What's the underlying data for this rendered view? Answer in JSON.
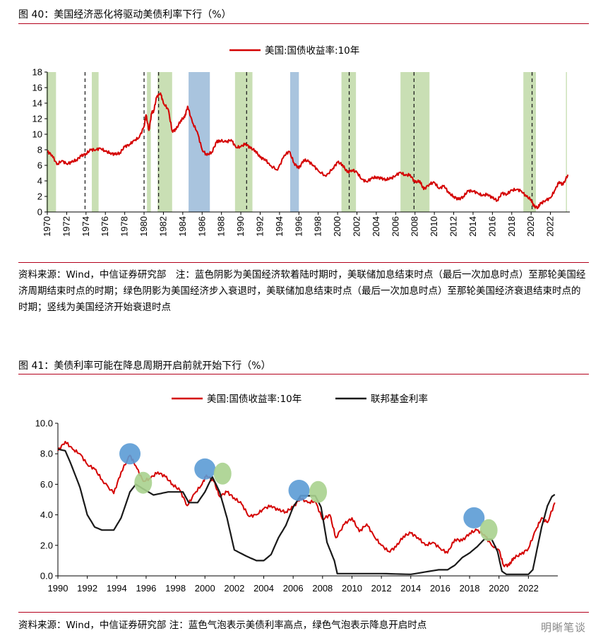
{
  "fig40": {
    "title": "图 40：美国经济恶化将驱动美债利率下行（%）",
    "note": "资料来源：Wind，中信证券研究部　注：蓝色阴影为美国经济软着陆时期时，美联储加息结束时点（最后一次加息时点）至那轮美国经济周期结束时点的时期；绿色阴影为美国经济步入衰退时，美联储加息结束时点（最后一次加息时点）至那轮美国经济衰退结束时点的时期；竖线为美国经济开始衰退时点"
  },
  "fig41": {
    "title": "图 41：美债利率可能在降息周期开启前就开始下行（%）",
    "note": "资料来源：Wind，中信证券研究部 注：蓝色气泡表示美债利率高点，绿色气泡表示降息开启时点"
  },
  "watermark": "明晰笔谈",
  "colors": {
    "us10y": "#d40000",
    "fed": "#1a1a1a",
    "blue_shade": "#a9c4de",
    "green_shade": "#c9dfb4",
    "blue_bubble": "#5b9bd5",
    "green_bubble": "#a9d18e"
  },
  "chart_data": [
    {
      "type": "line",
      "title": "",
      "legend": {
        "placement": "top-center",
        "entries": [
          "美国:国债收益率:10年"
        ]
      },
      "xlabel": "",
      "ylabel": "",
      "xlim": [
        1970,
        2024
      ],
      "ylim": [
        0,
        18
      ],
      "yticks": [
        0,
        2,
        4,
        6,
        8,
        10,
        12,
        14,
        16,
        18
      ],
      "xticks": [
        "1970",
        "1972",
        "1974",
        "1976",
        "1978",
        "1980",
        "1982",
        "1984",
        "1986",
        "1988",
        "1990",
        "1992",
        "1994",
        "1996",
        "1998",
        "2000",
        "2002",
        "2004",
        "2006",
        "2008",
        "2010",
        "2012",
        "2014",
        "2016",
        "2018",
        "2020",
        "2022"
      ],
      "grid": false,
      "series": [
        {
          "name": "美国:国债收益率:10年",
          "color": "#d40000",
          "x": [
            1970,
            1970.5,
            1971,
            1971.5,
            1972,
            1972.5,
            1973,
            1973.5,
            1974,
            1974.5,
            1975,
            1975.5,
            1976,
            1976.5,
            1977,
            1977.5,
            1978,
            1978.5,
            1979,
            1979.5,
            1980,
            1980.2,
            1980.5,
            1980.8,
            1981,
            1981.3,
            1981.7,
            1982,
            1982.5,
            1982.9,
            1983.3,
            1983.8,
            1984.2,
            1984.5,
            1985,
            1985.5,
            1986,
            1986.5,
            1987,
            1987.5,
            1987.8,
            1988.5,
            1989,
            1989.5,
            1990,
            1990.5,
            1991,
            1991.5,
            1992,
            1992.5,
            1993,
            1993.8,
            1994.5,
            1995,
            1995.5,
            1996,
            1996.5,
            1997,
            1997.5,
            1998,
            1998.8,
            1999.5,
            2000,
            2000.5,
            2001,
            2001.5,
            2002,
            2002.5,
            2003,
            2003.5,
            2004,
            2004.5,
            2005,
            2005.5,
            2006,
            2006.5,
            2007,
            2007.5,
            2008,
            2008.5,
            2008.9,
            2009.5,
            2010,
            2010.5,
            2011,
            2011.5,
            2012,
            2012.5,
            2013,
            2013.5,
            2014,
            2014.5,
            2015,
            2015.5,
            2016,
            2016.5,
            2017,
            2017.5,
            2018,
            2018.5,
            2019,
            2019.5,
            2020,
            2020.3,
            2020.7,
            2021,
            2021.5,
            2022,
            2022.5,
            2022.9,
            2023.3,
            2023.8
          ],
          "y": [
            7.8,
            7.3,
            6.1,
            6.6,
            6.2,
            6.4,
            6.7,
            7.2,
            7.5,
            8.0,
            8.0,
            8.2,
            7.8,
            7.6,
            7.4,
            7.6,
            8.4,
            8.7,
            9.2,
            9.6,
            11.0,
            12.5,
            10.5,
            12.8,
            13.0,
            14.8,
            15.3,
            14.0,
            13.2,
            10.4,
            10.6,
            11.8,
            12.2,
            13.6,
            11.5,
            10.3,
            8.0,
            7.3,
            7.7,
            9.0,
            9.2,
            9.0,
            9.3,
            8.3,
            8.4,
            8.8,
            8.2,
            7.9,
            7.0,
            6.8,
            6.0,
            5.4,
            7.3,
            7.8,
            6.3,
            5.6,
            6.7,
            6.5,
            6.0,
            5.3,
            4.6,
            5.6,
            6.4,
            6.1,
            5.1,
            5.4,
            5.1,
            4.2,
            3.9,
            4.3,
            4.5,
            4.3,
            4.2,
            4.3,
            4.7,
            5.1,
            4.7,
            4.8,
            3.8,
            4.0,
            2.9,
            3.6,
            3.8,
            3.0,
            3.4,
            2.4,
            2.0,
            1.6,
            2.0,
            2.7,
            2.7,
            2.4,
            2.1,
            2.3,
            1.8,
            1.5,
            2.4,
            2.3,
            2.8,
            2.9,
            2.7,
            2.0,
            1.6,
            0.7,
            0.6,
            1.1,
            1.5,
            1.8,
            2.9,
            3.9,
            3.5,
            4.8
          ]
        }
      ],
      "shades": [
        {
          "from": 1969.9,
          "to": 1970.9,
          "color": "green"
        },
        {
          "from": 1974.6,
          "to": 1975.3,
          "color": "green"
        },
        {
          "from": 1980.3,
          "to": 1980.7,
          "color": "green"
        },
        {
          "from": 1981.4,
          "to": 1982.9,
          "color": "green"
        },
        {
          "from": 1984.6,
          "to": 1986.8,
          "color": "blue"
        },
        {
          "from": 1989.4,
          "to": 1991.2,
          "color": "green"
        },
        {
          "from": 1995.1,
          "to": 1996.0,
          "color": "blue"
        },
        {
          "from": 2000.4,
          "to": 2001.9,
          "color": "green"
        },
        {
          "from": 2006.5,
          "to": 2009.5,
          "color": "green"
        },
        {
          "from": 2019.2,
          "to": 2020.5,
          "color": "green"
        },
        {
          "from": 2023.6,
          "to": 2023.7,
          "color": "green"
        }
      ],
      "vlines": [
        1973.9,
        1980.0,
        1981.5,
        1990.6,
        2001.2,
        2007.9,
        2020.1
      ]
    },
    {
      "type": "line",
      "title": "",
      "legend": {
        "placement": "top-center",
        "entries": [
          "美国:国债收益率:10年",
          "联邦基金利率"
        ]
      },
      "xlabel": "",
      "ylabel": "",
      "xlim": [
        1990,
        2024
      ],
      "ylim": [
        0,
        10
      ],
      "yticks": [
        "0.0",
        "2.0",
        "4.0",
        "6.0",
        "8.0",
        "10.0"
      ],
      "xticks": [
        "1990",
        "1992",
        "1994",
        "1996",
        "1998",
        "2000",
        "2002",
        "2004",
        "2006",
        "2008",
        "2010",
        "2012",
        "2014",
        "2016",
        "2018",
        "2020",
        "2022"
      ],
      "grid": false,
      "series": [
        {
          "name": "美国:国债收益率:10年",
          "color": "#d40000",
          "x": [
            1990,
            1990.5,
            1991,
            1991.5,
            1992,
            1992.5,
            1993,
            1993.8,
            1994.3,
            1994.9,
            1995.3,
            1995.8,
            1996.3,
            1996.8,
            1997.3,
            1997.8,
            1998.3,
            1998.8,
            1999.3,
            1999.8,
            2000.1,
            2000.6,
            2001.0,
            2001.5,
            2002.0,
            2002.5,
            2003.0,
            2003.5,
            2004.0,
            2004.5,
            2005.0,
            2005.5,
            2006.0,
            2006.5,
            2007.0,
            2007.5,
            2008.0,
            2008.5,
            2008.9,
            2009.5,
            2010.0,
            2010.5,
            2011.0,
            2011.5,
            2012.0,
            2012.5,
            2013.0,
            2013.5,
            2014.0,
            2014.5,
            2015.0,
            2015.5,
            2016.0,
            2016.5,
            2017.0,
            2017.5,
            2018.0,
            2018.5,
            2019.0,
            2019.5,
            2020.0,
            2020.3,
            2020.7,
            2021.0,
            2021.5,
            2022.0,
            2022.5,
            2022.9,
            2023.3,
            2023.8
          ],
          "y": [
            8.2,
            8.8,
            8.3,
            8.0,
            7.3,
            7.0,
            6.3,
            5.4,
            6.8,
            7.9,
            7.2,
            6.2,
            6.4,
            6.8,
            6.5,
            6.0,
            5.6,
            4.6,
            5.4,
            6.0,
            6.6,
            6.2,
            5.2,
            5.5,
            5.1,
            4.7,
            3.9,
            4.0,
            4.4,
            4.6,
            4.3,
            4.2,
            4.5,
            5.1,
            4.8,
            4.9,
            3.7,
            4.0,
            2.5,
            3.4,
            3.8,
            2.9,
            3.4,
            2.6,
            2.0,
            1.6,
            1.9,
            2.6,
            2.8,
            2.5,
            2.0,
            2.2,
            1.8,
            1.5,
            2.4,
            2.3,
            2.8,
            3.0,
            2.7,
            2.0,
            1.7,
            0.7,
            0.7,
            1.2,
            1.4,
            1.8,
            3.0,
            3.8,
            3.5,
            4.8
          ]
        },
        {
          "name": "联邦基金利率",
          "color": "#1a1a1a",
          "x": [
            1990,
            1990.5,
            1990.9,
            1991.5,
            1992.0,
            1992.5,
            1993.0,
            1993.8,
            1994.3,
            1994.9,
            1995.3,
            1995.8,
            1996.5,
            1997.5,
            1998.5,
            1998.9,
            1999.5,
            2000.0,
            2000.5,
            2001.0,
            2001.5,
            2002.0,
            2002.8,
            2003.5,
            2004.0,
            2004.5,
            2005.0,
            2005.5,
            2006.0,
            2006.5,
            2007.5,
            2007.9,
            2008.3,
            2008.8,
            2009.0,
            2010.0,
            2012.0,
            2014.0,
            2015.9,
            2016.5,
            2017.0,
            2017.5,
            2018.0,
            2018.5,
            2019.0,
            2019.5,
            2019.9,
            2020.2,
            2020.5,
            2021.5,
            2022.0,
            2022.3,
            2022.6,
            2022.9,
            2023.3,
            2023.6,
            2023.8
          ],
          "y": [
            8.3,
            8.2,
            7.3,
            5.8,
            4.0,
            3.2,
            3.0,
            3.0,
            3.8,
            5.5,
            6.0,
            5.7,
            5.3,
            5.5,
            5.5,
            4.8,
            4.8,
            5.5,
            6.5,
            5.5,
            3.8,
            1.7,
            1.3,
            1.0,
            1.0,
            1.4,
            2.5,
            3.3,
            4.5,
            5.25,
            5.25,
            4.5,
            2.2,
            1.0,
            0.15,
            0.15,
            0.15,
            0.1,
            0.4,
            0.4,
            0.7,
            1.2,
            1.5,
            1.9,
            2.4,
            2.4,
            1.6,
            0.3,
            0.1,
            0.1,
            0.1,
            0.4,
            1.8,
            3.2,
            4.6,
            5.2,
            5.33
          ]
        }
      ],
      "bubbles": [
        {
          "x": 1994.9,
          "y": 8.0,
          "color": "blue"
        },
        {
          "x": 1995.8,
          "y": 6.1,
          "color": "green"
        },
        {
          "x": 2000.0,
          "y": 7.0,
          "color": "blue"
        },
        {
          "x": 2001.2,
          "y": 6.7,
          "color": "green"
        },
        {
          "x": 2006.4,
          "y": 5.6,
          "color": "blue"
        },
        {
          "x": 2007.7,
          "y": 5.5,
          "color": "green"
        },
        {
          "x": 2018.3,
          "y": 3.8,
          "color": "blue"
        },
        {
          "x": 2019.3,
          "y": 3.0,
          "color": "green"
        }
      ]
    }
  ]
}
